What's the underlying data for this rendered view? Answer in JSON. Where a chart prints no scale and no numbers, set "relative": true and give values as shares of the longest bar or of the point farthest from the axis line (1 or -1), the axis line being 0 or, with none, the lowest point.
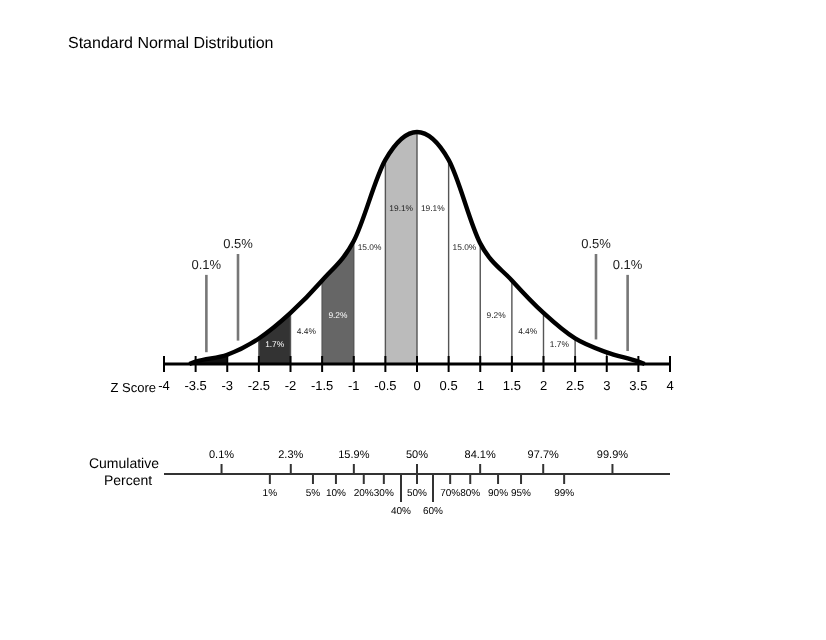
{
  "chart_data": [
    {
      "type": "line",
      "title": "Standard Normal Distribution",
      "xlabel": "Z Score",
      "relative": true,
      "xlim": [
        -4,
        4
      ],
      "xticks": [
        -4,
        -3.5,
        -3,
        -2.5,
        -2,
        -1.5,
        -1,
        -0.5,
        0,
        0.5,
        1,
        1.5,
        2,
        2.5,
        3,
        3.5,
        4
      ],
      "grid": "x",
      "series": [
        {
          "color": "#000000",
          "x": [
            -3.6,
            -3.5,
            -3,
            -2.5,
            -2,
            -1.5,
            -1,
            -0.5,
            0,
            0.5,
            1,
            1.5,
            2,
            2.5,
            3,
            3.5,
            3.6
          ],
          "values": [
            0,
            0.01,
            0.04,
            0.11,
            0.22,
            0.36,
            0.53,
            0.88,
            1,
            0.88,
            0.52,
            0.36,
            0.22,
            0.11,
            0.05,
            0.01,
            0
          ]
        }
      ],
      "bands": [
        {
          "axis": "x",
          "from": -3.5,
          "to": -3,
          "color": "#111111",
          "label": "0.1%"
        },
        {
          "axis": "x",
          "from": -2.5,
          "to": -2,
          "color": "#333333",
          "label": "1.7%"
        },
        {
          "axis": "x",
          "from": -1.5,
          "to": -1,
          "color": "#666666",
          "label": "9.2%"
        },
        {
          "axis": "x",
          "from": -0.5,
          "to": 0,
          "color": "#bbbbbb",
          "label": "19.1%"
        }
      ],
      "annotations": [
        "0.5%",
        "4.4%",
        "15.0%",
        "19.1%",
        "15.0%",
        "9.2%",
        "4.4%",
        "1.7%",
        "0.5%",
        "0.1%"
      ]
    },
    {
      "type": "other",
      "xlabel": "Cumulative Percent",
      "annotations": [
        "0.1%",
        "2.3%",
        "15.9%",
        "50%",
        "84.1%",
        "97.7%",
        "99.9%",
        "1%",
        "5%",
        "10%",
        "20%",
        "30%",
        "40%",
        "50%",
        "60%",
        "70%",
        "80%",
        "90%",
        "95%",
        "99%"
      ]
    }
  ]
}
